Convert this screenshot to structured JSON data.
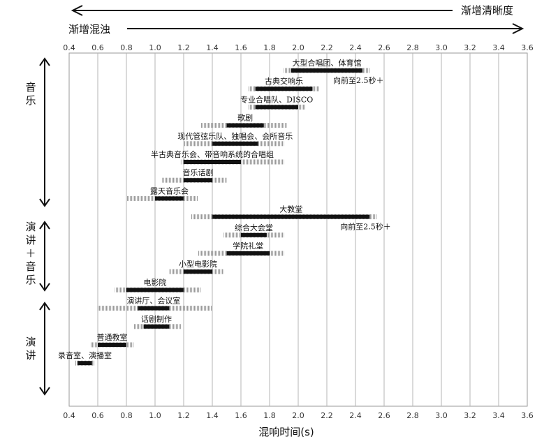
{
  "header": {
    "clarity_label": "渐增清晰度",
    "reverb_label": "渐增混浊"
  },
  "chart_data": {
    "type": "bar",
    "subtype": "floating-range",
    "xlabel": "混响时间(s)",
    "ylabel": "",
    "xlim": [
      0.4,
      3.6
    ],
    "xticks": [
      0.4,
      0.6,
      0.8,
      1.0,
      1.2,
      1.4,
      1.6,
      1.8,
      2.0,
      2.2,
      2.4,
      2.6,
      2.8,
      3.0,
      3.2,
      3.4,
      3.6
    ],
    "xtick_labels": [
      "0.4",
      "0.6",
      "0.8",
      "1.0",
      "1.2",
      "1.4",
      "1.6",
      "1.8",
      "2.0",
      "2.2",
      "2.4",
      "2.6",
      "2.8",
      "3.0",
      "3.2",
      "3.4",
      "3.6"
    ],
    "grid": true,
    "categories": [
      {
        "name": "音乐",
        "label_lines": [
          "音",
          "乐"
        ]
      },
      {
        "name": "演讲+音乐",
        "label_lines": [
          "演",
          "讲",
          "＋",
          "音",
          "乐"
        ]
      },
      {
        "name": "演讲",
        "label_lines": [
          "演",
          "讲"
        ]
      }
    ],
    "series": [
      {
        "name": "大型合唱团、体育馆",
        "category": "音乐",
        "range": [
          1.95,
          2.45
        ],
        "tolerance": [
          1.9,
          2.5
        ],
        "note": "向前至2.5秒＋"
      },
      {
        "name": "古典交响乐",
        "category": "音乐",
        "range": [
          1.7,
          2.1
        ],
        "tolerance": [
          1.65,
          2.15
        ],
        "note": ""
      },
      {
        "name": "专业合唱队、DISCO",
        "category": "音乐",
        "range": [
          1.7,
          2.0
        ],
        "tolerance": [
          1.65,
          2.05
        ],
        "note": ""
      },
      {
        "name": "歌剧",
        "category": "音乐",
        "range": [
          1.5,
          1.76
        ],
        "tolerance": [
          1.32,
          1.92
        ],
        "note": ""
      },
      {
        "name": "现代管弦乐队、独唱会、会所音乐",
        "category": "音乐",
        "range": [
          1.4,
          1.72
        ],
        "tolerance": [
          1.2,
          1.9
        ],
        "note": ""
      },
      {
        "name": "半古典音乐会、带音响系统的合唱组",
        "category": "音乐",
        "range": [
          1.2,
          1.6
        ],
        "tolerance": [
          1.18,
          1.9
        ],
        "note": ""
      },
      {
        "name": "音乐话剧",
        "category": "音乐",
        "range": [
          1.2,
          1.4
        ],
        "tolerance": [
          1.05,
          1.5
        ],
        "note": ""
      },
      {
        "name": "露天音乐会",
        "category": "音乐",
        "range": [
          1.0,
          1.2
        ],
        "tolerance": [
          0.8,
          1.3
        ],
        "note": ""
      },
      {
        "name": "大教堂",
        "category": "演讲+音乐",
        "range": [
          1.4,
          2.5
        ],
        "tolerance": [
          1.25,
          2.55
        ],
        "note": "向前至2.5秒＋"
      },
      {
        "name": "综合大会堂",
        "category": "演讲+音乐",
        "range": [
          1.6,
          1.78
        ],
        "tolerance": [
          1.48,
          1.9
        ],
        "note": ""
      },
      {
        "name": "学院礼堂",
        "category": "演讲+音乐",
        "range": [
          1.5,
          1.8
        ],
        "tolerance": [
          1.3,
          1.9
        ],
        "note": ""
      },
      {
        "name": "小型电影院",
        "category": "演讲+音乐",
        "range": [
          1.2,
          1.4
        ],
        "tolerance": [
          1.1,
          1.48
        ],
        "note": ""
      },
      {
        "name": "电影院",
        "category": "演讲",
        "range": [
          0.8,
          1.2
        ],
        "tolerance": [
          0.72,
          1.32
        ],
        "note": ""
      },
      {
        "name": "演讲厅、会议室",
        "category": "演讲",
        "range": [
          0.88,
          1.1
        ],
        "tolerance": [
          0.6,
          1.4
        ],
        "note": ""
      },
      {
        "name": "话剧制作",
        "category": "演讲",
        "range": [
          0.92,
          1.1
        ],
        "tolerance": [
          0.85,
          1.18
        ],
        "note": ""
      },
      {
        "name": "普通教室",
        "category": "演讲",
        "range": [
          0.6,
          0.8
        ],
        "tolerance": [
          0.55,
          0.85
        ],
        "note": ""
      },
      {
        "name": "录音室、演播室",
        "category": "演讲",
        "range": [
          0.46,
          0.56
        ],
        "tolerance": [
          0.44,
          0.58
        ],
        "note": ""
      }
    ]
  }
}
